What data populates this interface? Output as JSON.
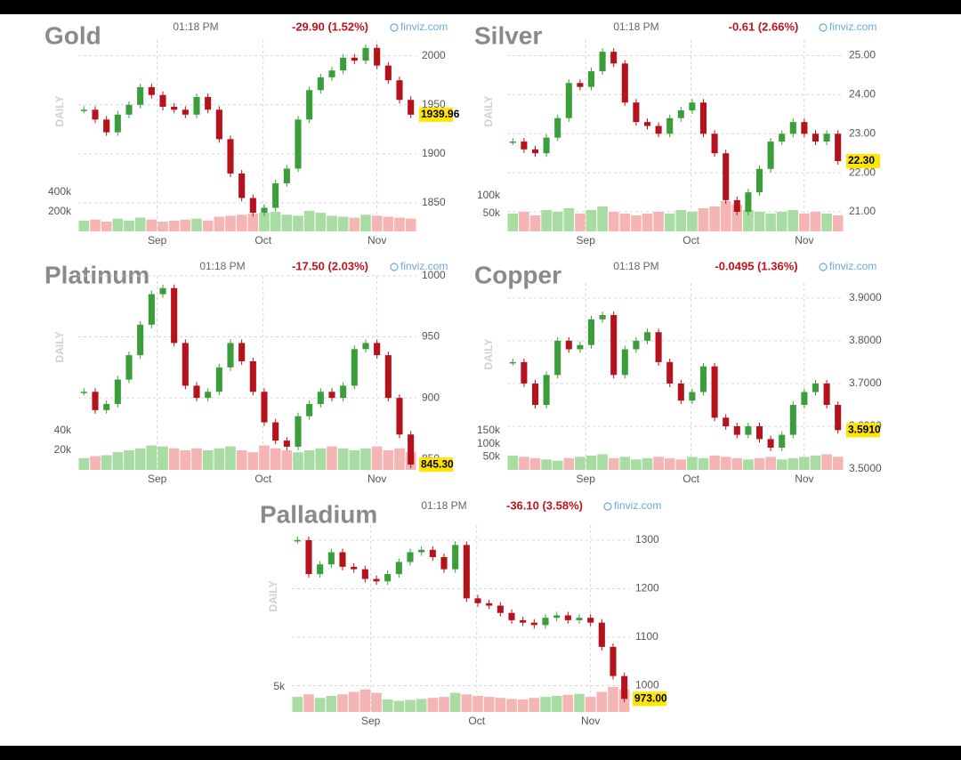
{
  "chart_data": [
    {
      "type": "candlestick",
      "title": "Gold",
      "time": "01:18 PM",
      "change": "-29.90 (1.52%)",
      "source": "finviz.com",
      "y_label": "DAILY",
      "close": [
        1945,
        1935,
        1922,
        1940,
        1950,
        1968,
        1960,
        1948,
        1945,
        1940,
        1958,
        1945,
        1915,
        1880,
        1855,
        1840,
        1845,
        1870,
        1885,
        1935,
        1965,
        1978,
        1985,
        1998,
        1995,
        2008,
        1990,
        1975,
        1955,
        1939.96
      ],
      "volume": [
        110000,
        120000,
        100000,
        130000,
        110000,
        140000,
        120000,
        100000,
        110000,
        120000,
        130000,
        110000,
        150000,
        160000,
        170000,
        180000,
        190000,
        200000,
        170000,
        160000,
        210000,
        190000,
        160000,
        150000,
        140000,
        170000,
        160000,
        150000,
        140000,
        130000
      ],
      "last_label": "1939.96",
      "ylim": [
        1821,
        2016
      ],
      "yticks": [
        1850,
        1900,
        1950,
        2000
      ],
      "volume_lim": [
        0,
        400000
      ],
      "volume_ticks": [
        {
          "value": 200000,
          "label": "200k"
        },
        {
          "value": 400000,
          "label": "400k"
        }
      ],
      "xlim": [
        0,
        30
      ],
      "xticks": [
        {
          "value": 7,
          "label": "Sep"
        },
        {
          "value": 16.4,
          "label": "Oct"
        },
        {
          "value": 26.5,
          "label": "Nov"
        }
      ],
      "up_color": "#3a9e3a",
      "down_color": "#b5121b"
    },
    {
      "type": "candlestick",
      "title": "Silver",
      "time": "01:18 PM",
      "change": "-0.61 (2.66%)",
      "source": "finviz.com",
      "y_label": "DAILY",
      "close": [
        22.8,
        22.6,
        22.5,
        22.9,
        23.4,
        24.3,
        24.2,
        24.6,
        25.1,
        24.8,
        23.8,
        23.3,
        23.2,
        23.0,
        23.4,
        23.6,
        23.8,
        23.0,
        22.5,
        21.3,
        21.0,
        21.5,
        22.1,
        22.8,
        23.0,
        23.3,
        23.0,
        22.8,
        23.0,
        22.3
      ],
      "volume": [
        50000,
        55000,
        45000,
        60000,
        55000,
        65000,
        50000,
        60000,
        70000,
        55000,
        50000,
        45000,
        50000,
        55000,
        50000,
        60000,
        55000,
        65000,
        70000,
        85000,
        75000,
        60000,
        55000,
        50000,
        55000,
        60000,
        50000,
        55000,
        50000,
        45000
      ],
      "last_label": "22.30",
      "ylim": [
        20.5,
        25.4
      ],
      "yticks": [
        {
          "value": 21,
          "label": "21.00"
        },
        {
          "value": 22,
          "label": "22.00"
        },
        {
          "value": 23,
          "label": "23.00"
        },
        {
          "value": 24,
          "label": "24.00"
        },
        {
          "value": 25,
          "label": "25.00"
        }
      ],
      "volume_lim": [
        0,
        110000
      ],
      "volume_ticks": [
        {
          "value": 50000,
          "label": "50k"
        },
        {
          "value": 100000,
          "label": "100k"
        }
      ],
      "xlim": [
        0,
        30
      ],
      "xticks": [
        {
          "value": 7,
          "label": "Sep"
        },
        {
          "value": 16.4,
          "label": "Oct"
        },
        {
          "value": 26.5,
          "label": "Nov"
        }
      ],
      "up_color": "#3a9e3a",
      "down_color": "#b5121b"
    },
    {
      "type": "candlestick",
      "title": "Platinum",
      "time": "01:18 PM",
      "change": "-17.50 (2.03%)",
      "source": "finviz.com",
      "y_label": "DAILY",
      "close": [
        905,
        890,
        895,
        915,
        935,
        960,
        985,
        990,
        945,
        910,
        900,
        905,
        925,
        945,
        930,
        905,
        880,
        865,
        860,
        885,
        895,
        905,
        900,
        910,
        940,
        945,
        935,
        900,
        870,
        845.3
      ],
      "volume": [
        12000,
        14000,
        15000,
        18000,
        20000,
        22000,
        25000,
        24000,
        22000,
        20000,
        22000,
        20000,
        22000,
        24000,
        20000,
        18000,
        25000,
        22000,
        20000,
        18000,
        20000,
        22000,
        24000,
        22000,
        20000,
        22000,
        24000,
        20000,
        22000,
        18000
      ],
      "last_label": "845.30",
      "ylim": [
        841,
        1000
      ],
      "yticks": [
        850,
        900,
        950,
        1000
      ],
      "volume_lim": [
        0,
        40000
      ],
      "volume_ticks": [
        {
          "value": 20000,
          "label": "20k"
        },
        {
          "value": 40000,
          "label": "40k"
        }
      ],
      "xlim": [
        0,
        30
      ],
      "xticks": [
        {
          "value": 7,
          "label": "Sep"
        },
        {
          "value": 16.4,
          "label": "Oct"
        },
        {
          "value": 26.5,
          "label": "Nov"
        }
      ],
      "up_color": "#3a9e3a",
      "down_color": "#b5121b"
    },
    {
      "type": "candlestick",
      "title": "Copper",
      "time": "01:18 PM",
      "change": "-0.0495 (1.36%)",
      "source": "finviz.com",
      "y_label": "DAILY",
      "close": [
        3.75,
        3.7,
        3.65,
        3.72,
        3.8,
        3.78,
        3.79,
        3.85,
        3.86,
        3.72,
        3.78,
        3.8,
        3.82,
        3.75,
        3.7,
        3.66,
        3.68,
        3.74,
        3.62,
        3.6,
        3.58,
        3.6,
        3.57,
        3.55,
        3.58,
        3.65,
        3.68,
        3.7,
        3.65,
        3.591
      ],
      "volume": [
        55000,
        50000,
        45000,
        40000,
        35000,
        45000,
        50000,
        55000,
        60000,
        45000,
        50000,
        40000,
        45000,
        50000,
        45000,
        40000,
        50000,
        45000,
        55000,
        50000,
        45000,
        40000,
        45000,
        50000,
        40000,
        45000,
        50000,
        55000,
        60000,
        50000
      ],
      "last_label": "3.5910",
      "ylim": [
        3.498,
        3.935
      ],
      "yticks": [
        {
          "value": 3.5,
          "label": "3.5000"
        },
        {
          "value": 3.6,
          "label": "3.6000"
        },
        {
          "value": 3.7,
          "label": "3.7000"
        },
        {
          "value": 3.8,
          "label": "3.8000"
        },
        {
          "value": 3.9,
          "label": "3.9000"
        }
      ],
      "volume_lim": [
        0,
        150000
      ],
      "volume_ticks": [
        {
          "value": 50000,
          "label": "50k"
        },
        {
          "value": 100000,
          "label": "100k"
        },
        {
          "value": 150000,
          "label": "150k"
        }
      ],
      "xlim": [
        0,
        30
      ],
      "xticks": [
        {
          "value": 7,
          "label": "Sep"
        },
        {
          "value": 16.4,
          "label": "Oct"
        },
        {
          "value": 26.5,
          "label": "Nov"
        }
      ],
      "up_color": "#3a9e3a",
      "down_color": "#b5121b"
    },
    {
      "type": "candlestick",
      "title": "Palladium",
      "time": "01:18 PM",
      "change": "-36.10 (3.58%)",
      "source": "finviz.com",
      "y_label": "DAILY",
      "close": [
        1300,
        1230,
        1250,
        1275,
        1245,
        1240,
        1220,
        1215,
        1230,
        1255,
        1275,
        1280,
        1265,
        1240,
        1290,
        1180,
        1170,
        1165,
        1150,
        1135,
        1130,
        1125,
        1140,
        1145,
        1135,
        1140,
        1130,
        1080,
        1020,
        973
      ],
      "volume": [
        3000,
        3500,
        2800,
        3200,
        3500,
        4000,
        4500,
        3800,
        2500,
        2200,
        2400,
        2600,
        2800,
        3000,
        3800,
        3500,
        3200,
        3000,
        2800,
        2600,
        2500,
        2800,
        3000,
        3200,
        3400,
        3600,
        3000,
        4000,
        5000,
        4500
      ],
      "last_label": "973.00",
      "ylim": [
        946,
        1331
      ],
      "yticks": [
        1000,
        1100,
        1200,
        1300
      ],
      "volume_lim": [
        0,
        7800
      ],
      "volume_ticks": [
        {
          "value": 5000,
          "label": "5k"
        }
      ],
      "xlim": [
        0,
        30
      ],
      "xticks": [
        {
          "value": 7,
          "label": "Sep"
        },
        {
          "value": 16.4,
          "label": "Oct"
        },
        {
          "value": 26.5,
          "label": "Nov"
        }
      ],
      "up_color": "#3a9e3a",
      "down_color": "#b5121b"
    }
  ]
}
